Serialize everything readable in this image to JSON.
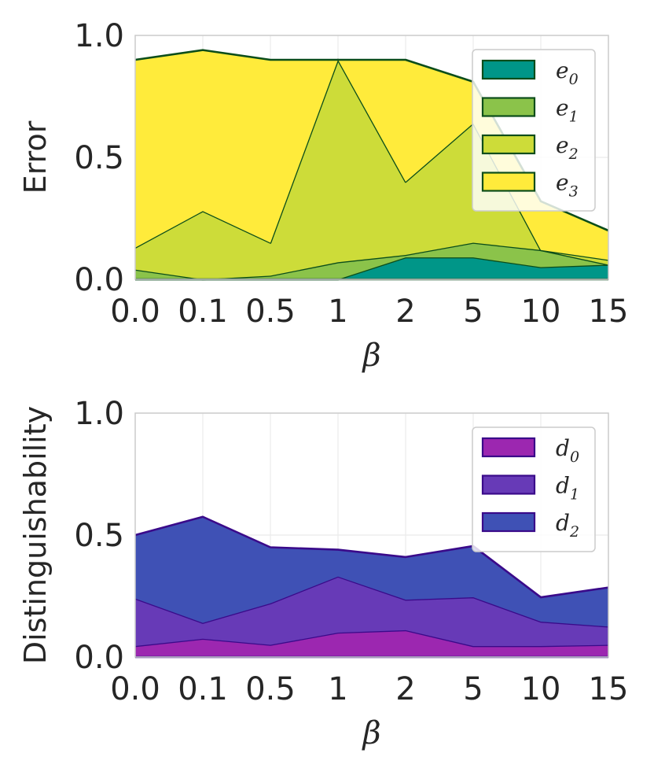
{
  "chart_data": [
    {
      "type": "area",
      "stacked": true,
      "title": "",
      "xlabel": "β",
      "ylabel": "Error",
      "categories": [
        "0.0",
        "0.1",
        "0.5",
        "1",
        "2",
        "5",
        "10",
        "15"
      ],
      "ylim": [
        0,
        1
      ],
      "yticks": [
        "0.0",
        "0.5",
        "1.0"
      ],
      "grid": true,
      "legend_position": "top-right",
      "edge_color": "#0b4d1a",
      "series": [
        {
          "name": "e",
          "sub": "0",
          "color": "#009688",
          "values": [
            0.0,
            0.0,
            0.0,
            0.0,
            0.09,
            0.09,
            0.05,
            0.06
          ]
        },
        {
          "name": "e",
          "sub": "1",
          "color": "#8bc34a",
          "values": [
            0.04,
            0.0,
            0.015,
            0.07,
            0.01,
            0.06,
            0.07,
            0.0
          ]
        },
        {
          "name": "e",
          "sub": "2",
          "color": "#cddc39",
          "values": [
            0.09,
            0.28,
            0.135,
            0.83,
            0.3,
            0.49,
            0.0,
            0.02
          ]
        },
        {
          "name": "e",
          "sub": "3",
          "color": "#ffeb3b",
          "values": [
            0.77,
            0.66,
            0.75,
            0.0,
            0.5,
            0.17,
            0.2,
            0.12
          ]
        }
      ]
    },
    {
      "type": "area",
      "stacked": true,
      "title": "",
      "xlabel": "β",
      "ylabel": "Distinguishability",
      "categories": [
        "0.0",
        "0.1",
        "0.5",
        "1",
        "2",
        "5",
        "10",
        "15"
      ],
      "ylim": [
        0,
        1
      ],
      "yticks": [
        "0.0",
        "0.5",
        "1.0"
      ],
      "grid": true,
      "legend_position": "top-right",
      "edge_color": "#3a0a8a",
      "series": [
        {
          "name": "d",
          "sub": "0",
          "color": "#9c27b0",
          "values": [
            0.045,
            0.075,
            0.05,
            0.1,
            0.11,
            0.045,
            0.045,
            0.05
          ]
        },
        {
          "name": "d",
          "sub": "1",
          "color": "#673ab7",
          "values": [
            0.195,
            0.065,
            0.17,
            0.23,
            0.125,
            0.2,
            0.1,
            0.075
          ]
        },
        {
          "name": "d",
          "sub": "2",
          "color": "#3f51b5",
          "values": [
            0.26,
            0.435,
            0.23,
            0.11,
            0.175,
            0.21,
            0.1,
            0.16
          ]
        }
      ]
    }
  ]
}
